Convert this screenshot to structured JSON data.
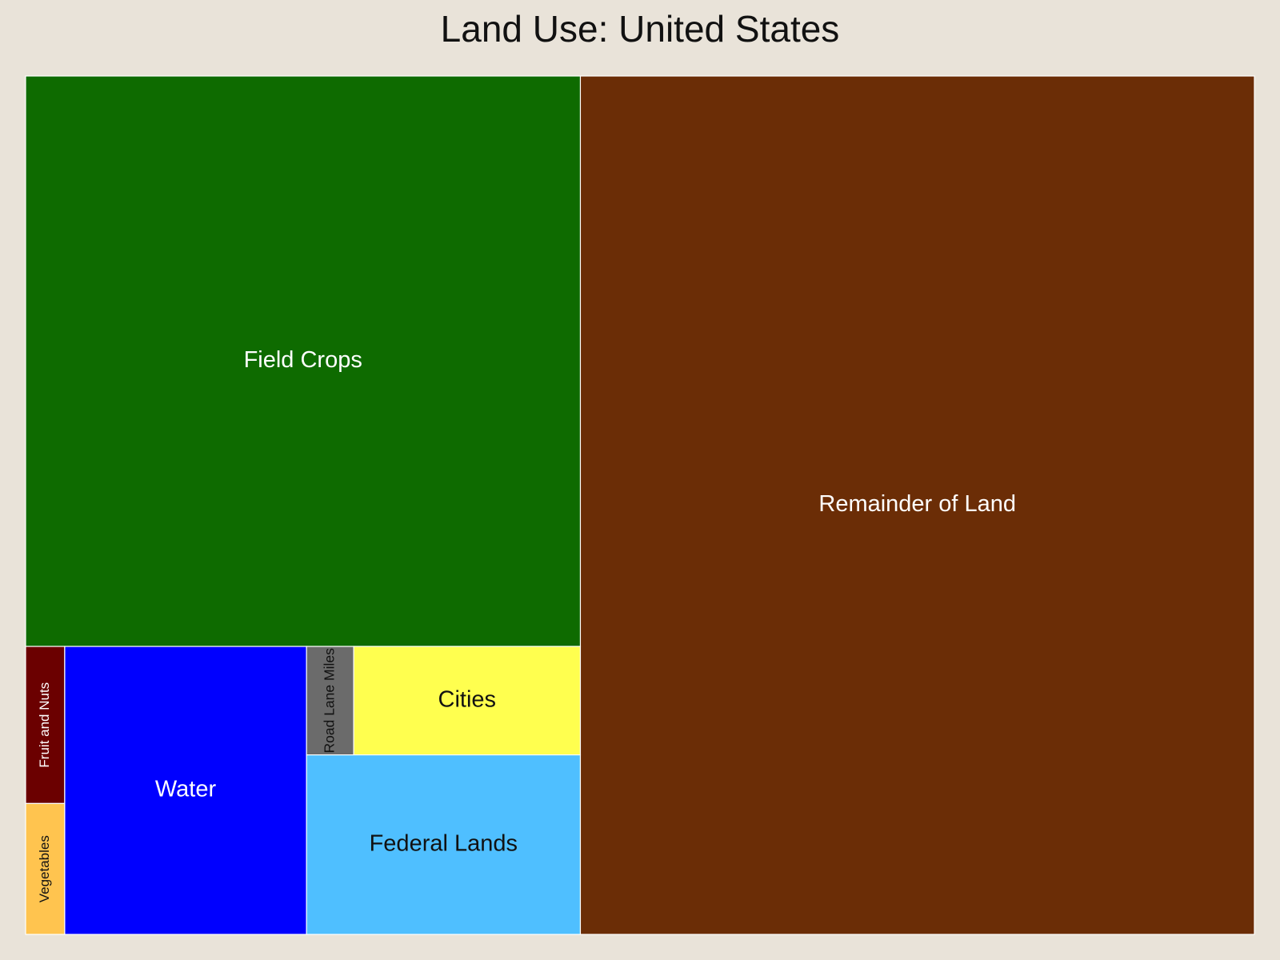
{
  "chart_data": {
    "type": "treemap",
    "title": "Land Use: United States",
    "categories": [
      "Remainder of Land",
      "Field Crops",
      "Fruit and Nuts",
      "Vegetables",
      "Water",
      "Road Lane Miles",
      "Cities",
      "Federal Lands"
    ],
    "values": [
      56.5,
      30.9,
      0.6,
      0.5,
      6.8,
      0.5,
      2.4,
      4.8
    ],
    "colors": [
      "#6b2d06",
      "#0e6b00",
      "#6b0000",
      "#ffc44f",
      "#0000ff",
      "#6b6b6b",
      "#ffff4f",
      "#4fbfff"
    ]
  }
}
